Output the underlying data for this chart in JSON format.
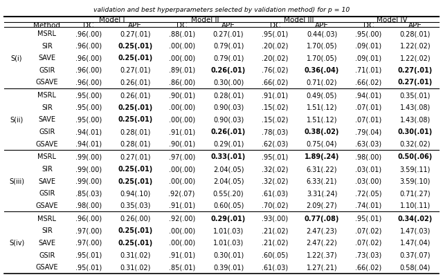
{
  "title": "validation and best hyperparameters selected by validation method) for p = 10",
  "col_groups": [
    "Model I",
    "Model II",
    "Model III",
    "Model IV"
  ],
  "row_groups": [
    "S(i)",
    "S(ii)",
    "S(iii)",
    "S(iv)"
  ],
  "methods": [
    "MSRL",
    "SIR",
    "SAVE",
    "GSIR",
    "GSAVE"
  ],
  "data": {
    "S(i)": {
      "MSRL": [
        ".96(.00)",
        "0.27(.01)",
        ".88(.01)",
        "0.27(.01)",
        ".95(.01)",
        "0.44(.03)",
        ".95(.00)",
        "0.28(.01)"
      ],
      "SIR": [
        ".96(.00)",
        "0.25(.01)",
        ".00(.00)",
        "0.79(.01)",
        ".20(.02)",
        "1.70(.05)",
        ".09(.01)",
        "1.22(.02)"
      ],
      "SAVE": [
        ".96(.00)",
        "0.25(.01)",
        ".00(.00)",
        "0.79(.01)",
        ".20(.02)",
        "1.70(.05)",
        ".09(.01)",
        "1.22(.02)"
      ],
      "GSIR": [
        ".96(.00)",
        "0.27(.01)",
        ".89(.01)",
        "0.26(.01)",
        ".76(.02)",
        "0.36(.04)",
        ".71(.01)",
        "0.27(.01)"
      ],
      "GSAVE": [
        ".96(.00)",
        "0.26(.01)",
        ".86(.00)",
        "0.30(.00)",
        ".66(.02)",
        "0.71(.02)",
        ".66(.02)",
        "0.27(.01)"
      ]
    },
    "S(ii)": {
      "MSRL": [
        ".95(.00)",
        "0.26(.01)",
        ".90(.01)",
        "0.28(.01)",
        ".91(.01)",
        "0.49(.05)",
        ".94(.01)",
        "0.35(.01)"
      ],
      "SIR": [
        ".95(.00)",
        "0.25(.01)",
        ".00(.00)",
        "0.90(.03)",
        ".15(.02)",
        "1.51(.12)",
        ".07(.01)",
        "1.43(.08)"
      ],
      "SAVE": [
        ".95(.00)",
        "0.25(.01)",
        ".00(.00)",
        "0.90(.03)",
        ".15(.02)",
        "1.51(.12)",
        ".07(.01)",
        "1.43(.08)"
      ],
      "GSIR": [
        ".94(.01)",
        "0.28(.01)",
        ".91(.01)",
        "0.26(.01)",
        ".78(.03)",
        "0.38(.02)",
        ".79(.04)",
        "0.30(.01)"
      ],
      "GSAVE": [
        ".94(.01)",
        "0.28(.01)",
        ".90(.01)",
        "0.29(.01)",
        ".62(.03)",
        "0.75(.04)",
        ".63(.03)",
        "0.32(.02)"
      ]
    },
    "S(iii)": {
      "MSRL": [
        ".99(.00)",
        "0.27(.01)",
        ".97(.00)",
        "0.33(.01)",
        ".95(.01)",
        "1.89(.24)",
        ".98(.00)",
        "0.50(.06)"
      ],
      "SIR": [
        ".99(.00)",
        "0.25(.01)",
        ".00(.00)",
        "2.04(.05)",
        ".32(.02)",
        "6.31(.22)",
        ".03(.01)",
        "3.59(.11)"
      ],
      "SAVE": [
        ".99(.00)",
        "0.25(.01)",
        ".00(.00)",
        "2.04(.05)",
        ".32(.02)",
        "6.33(.21)",
        ".03(.00)",
        "3.59(.10)"
      ],
      "GSIR": [
        ".85(.03)",
        "0.94(.10)",
        ".92(.07)",
        "0.55(.20)",
        ".61(.03)",
        "3.31(.24)",
        ".72(.05)",
        "0.71(.27)"
      ],
      "GSAVE": [
        ".98(.00)",
        "0.35(.03)",
        ".91(.01)",
        "0.60(.05)",
        ".70(.02)",
        "2.09(.27)",
        ".74(.01)",
        "1.10(.11)"
      ]
    },
    "S(iv)": {
      "MSRL": [
        ".96(.00)",
        "0.26(.00)",
        ".92(.00)",
        "0.29(.01)",
        ".93(.00)",
        "0.77(.08)",
        ".95(.01)",
        "0.34(.02)"
      ],
      "SIR": [
        ".97(.00)",
        "0.25(.01)",
        ".00(.00)",
        "1.01(.03)",
        ".21(.02)",
        "2.47(.23)",
        ".07(.02)",
        "1.47(.03)"
      ],
      "SAVE": [
        ".97(.00)",
        "0.25(.01)",
        ".00(.00)",
        "1.01(.03)",
        ".21(.02)",
        "2.47(.22)",
        ".07(.02)",
        "1.47(.04)"
      ],
      "GSIR": [
        ".95(.01)",
        "0.31(.02)",
        ".91(.01)",
        "0.30(.01)",
        ".60(.05)",
        "1.22(.37)",
        ".73(.03)",
        "0.37(.07)"
      ],
      "GSAVE": [
        ".95(.01)",
        "0.31(.02)",
        ".85(.01)",
        "0.39(.01)",
        ".61(.03)",
        "1.27(.21)",
        ".66(.02)",
        "0.58(.04)"
      ]
    }
  },
  "bold_cells": {
    "S(i)": {
      "SIR": [
        0,
        1,
        0,
        0,
        0,
        0,
        0,
        0
      ],
      "SAVE": [
        0,
        1,
        0,
        0,
        0,
        0,
        0,
        0
      ],
      "GSIR": [
        0,
        0,
        0,
        1,
        0,
        1,
        0,
        1
      ],
      "GSAVE": [
        0,
        0,
        0,
        0,
        0,
        0,
        0,
        1
      ]
    },
    "S(ii)": {
      "SIR": [
        0,
        1,
        0,
        0,
        0,
        0,
        0,
        0
      ],
      "SAVE": [
        0,
        1,
        0,
        0,
        0,
        0,
        0,
        0
      ],
      "GSIR": [
        0,
        0,
        0,
        1,
        0,
        1,
        0,
        1
      ],
      "GSAVE": [
        0,
        0,
        0,
        0,
        0,
        0,
        0,
        0
      ]
    },
    "S(iii)": {
      "MSRL": [
        0,
        0,
        0,
        1,
        0,
        1,
        0,
        1
      ],
      "SIR": [
        0,
        1,
        0,
        0,
        0,
        0,
        0,
        0
      ],
      "SAVE": [
        0,
        1,
        0,
        0,
        0,
        0,
        0,
        0
      ],
      "GSIR": [
        0,
        0,
        0,
        0,
        0,
        0,
        0,
        0
      ],
      "GSAVE": [
        0,
        0,
        0,
        0,
        0,
        0,
        0,
        0
      ]
    },
    "S(iv)": {
      "MSRL": [
        0,
        0,
        0,
        1,
        0,
        1,
        0,
        1
      ],
      "SIR": [
        0,
        1,
        0,
        0,
        0,
        0,
        0,
        0
      ],
      "SAVE": [
        0,
        1,
        0,
        0,
        0,
        0,
        0,
        0
      ],
      "GSIR": [
        0,
        0,
        0,
        0,
        0,
        0,
        0,
        0
      ],
      "GSAVE": [
        0,
        0,
        0,
        0,
        0,
        0,
        0,
        0
      ]
    }
  },
  "background_color": "#ffffff",
  "font_size": 7.0,
  "header_font_size": 7.5
}
